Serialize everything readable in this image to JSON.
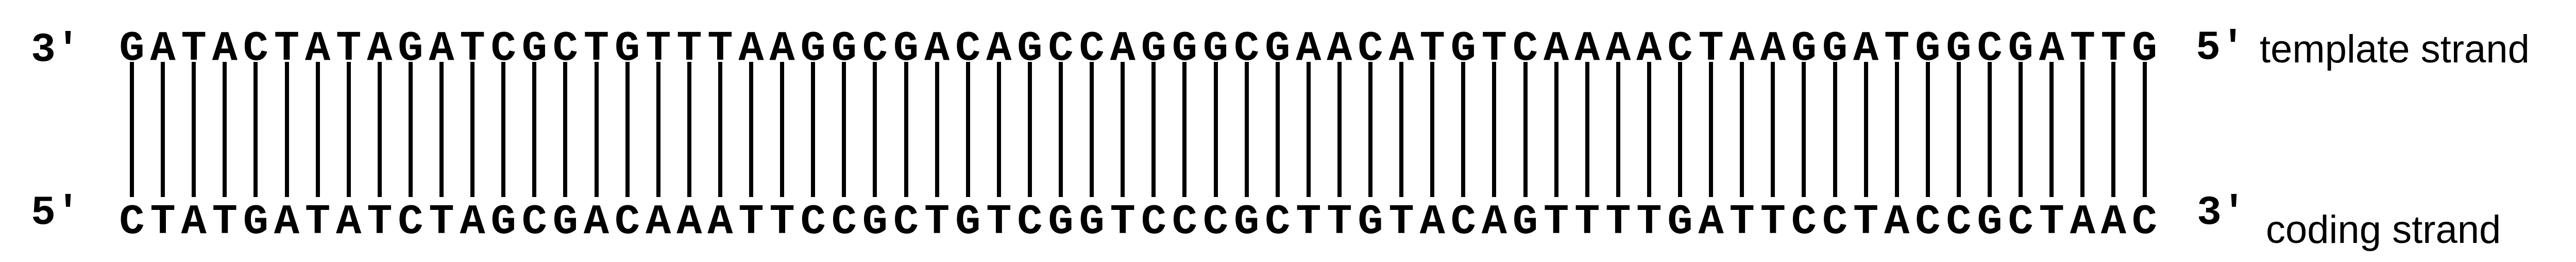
{
  "template_strand": {
    "left_end": "3'",
    "sequence": "GATACTATAGATCGCTGTTTAAGGCGACAGCCAGGGCGAACATGTCAAAACTAAGGATGGCGATTG",
    "right_end": "5'",
    "name": "template strand"
  },
  "coding_strand": {
    "left_end": "5'",
    "sequence": "CTATGATATCTAGCGACAAATTCCGCTGTCGGTCCCGCTTGTACAGTTTTGATTCCTACCGCTAAC",
    "right_end": "3'",
    "name": "coding strand"
  },
  "colors": {
    "text": "#000000",
    "background": "#ffffff"
  }
}
